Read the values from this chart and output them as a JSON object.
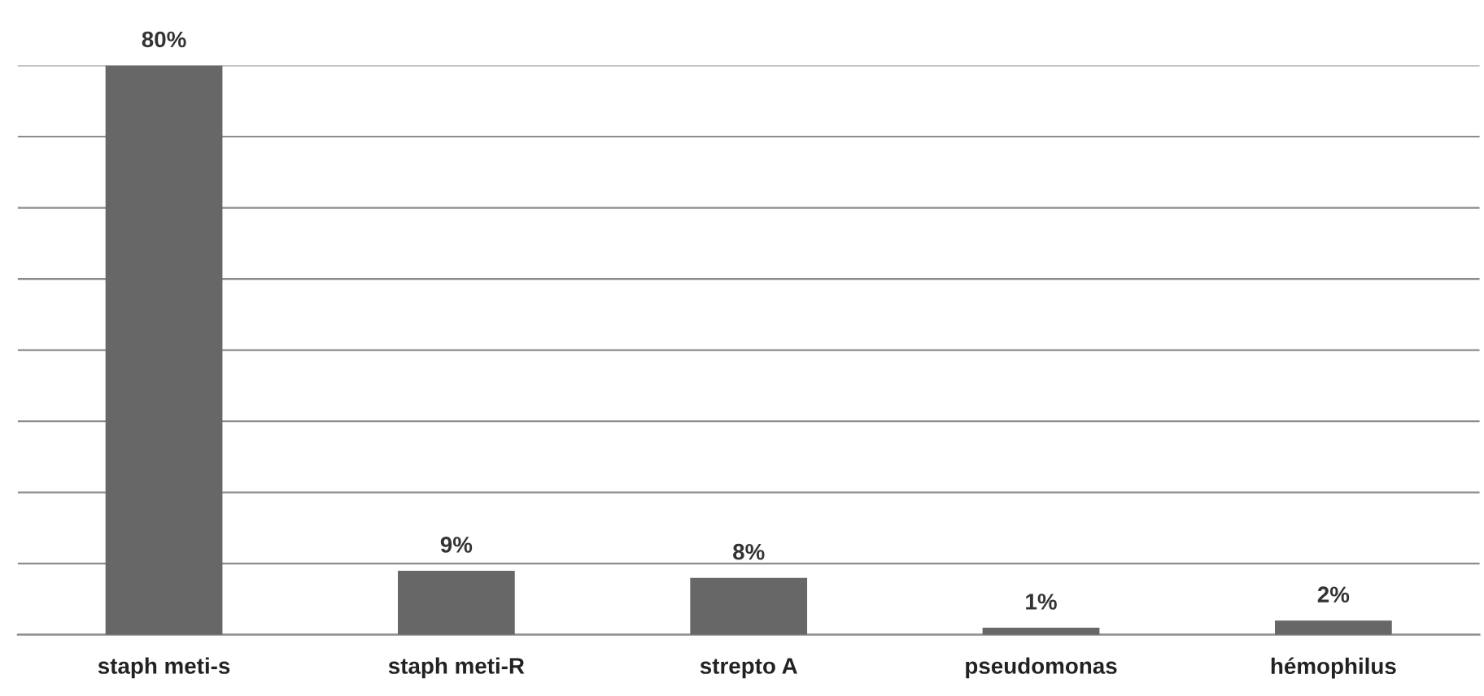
{
  "chart_data": {
    "type": "bar",
    "categories": [
      "staph meti-s",
      "staph meti-R",
      "strepto A",
      "pseudomonas",
      "hémophilus"
    ],
    "values": [
      80,
      9,
      8,
      1,
      2
    ],
    "value_labels": [
      "80%",
      "9%",
      "8%",
      "1%",
      "2%"
    ],
    "color": "#676767",
    "ylim": [
      0,
      80
    ],
    "yticks": [
      {
        "value": 0,
        "label": null
      },
      {
        "value": 10,
        "label": null
      },
      {
        "value": 20,
        "label": null
      },
      {
        "value": 30,
        "label": null
      },
      {
        "value": 40,
        "label": null
      },
      {
        "value": 50,
        "label": null
      },
      {
        "value": 60,
        "label": null
      },
      {
        "value": 70,
        "label": null
      },
      {
        "value": 80,
        "label": null
      }
    ],
    "tick_labels": "x",
    "grid": "y"
  }
}
